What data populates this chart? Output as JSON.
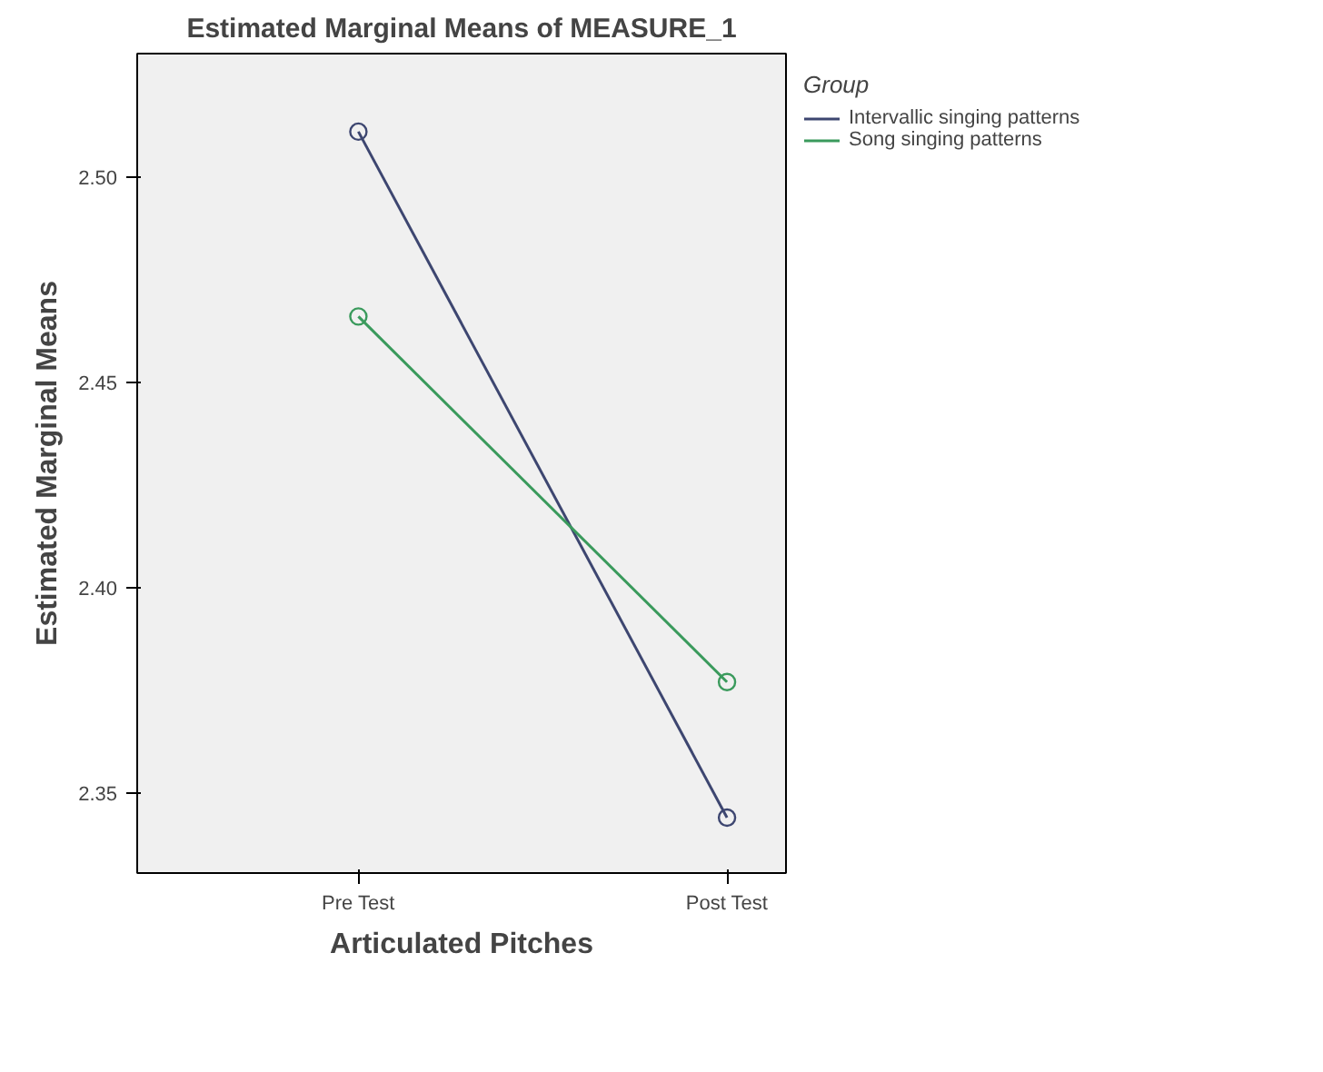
{
  "chart_data": {
    "type": "line",
    "title": "Estimated Marginal Means of MEASURE_1",
    "xlabel": "Articulated Pitches",
    "ylabel": "Estimated Marginal Means",
    "legend_title": "Group",
    "categories": [
      "Pre Test",
      "Post Test"
    ],
    "series": [
      {
        "name": "Intervallic singing patterns",
        "color": "#3d4670",
        "values": [
          2.511,
          2.344
        ]
      },
      {
        "name": "Song singing patterns",
        "color": "#3a9a5c",
        "values": [
          2.466,
          2.377
        ]
      }
    ],
    "ylim": [
      2.3305,
      2.53
    ],
    "yticks": [
      {
        "value": 2.35,
        "label": "2.35"
      },
      {
        "value": 2.4,
        "label": "2.40"
      },
      {
        "value": 2.45,
        "label": "2.45"
      },
      {
        "value": 2.5,
        "label": "2.50"
      }
    ],
    "grid": false,
    "legend": "right",
    "marker": "circle",
    "line_style": "solid"
  }
}
